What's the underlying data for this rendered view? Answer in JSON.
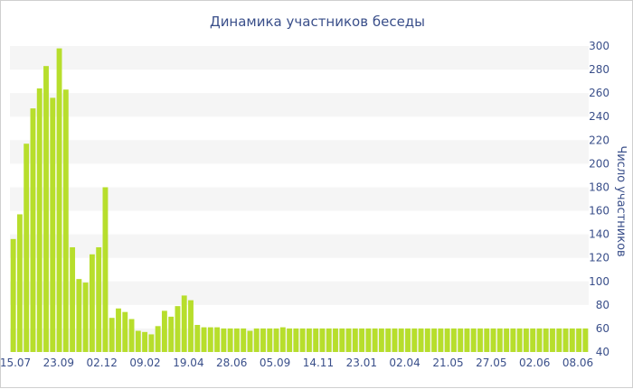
{
  "chart_data": {
    "type": "bar",
    "title": "Динамика участников беседы",
    "xlabel": "",
    "ylabel": "Число участников",
    "ylim": [
      40,
      300
    ],
    "yticks": [
      40,
      60,
      80,
      100,
      120,
      140,
      160,
      180,
      200,
      220,
      240,
      260,
      280,
      300
    ],
    "y_axis_side": "right",
    "grid": "alternating horizontal bands",
    "legend": "none",
    "bar_color": "#b7de2c",
    "band_color": "#f5f5f5",
    "text_color": "#3a4f8a",
    "x_tick_labels": [
      "15.07",
      "23.09",
      "02.12",
      "09.02",
      "19.04",
      "28.06",
      "05.09",
      "14.11",
      "23.01",
      "02.04",
      "21.05",
      "27.05",
      "02.06",
      "08.06"
    ],
    "values": [
      136,
      157,
      217,
      247,
      264,
      283,
      256,
      298,
      263,
      129,
      102,
      99,
      123,
      129,
      180,
      69,
      77,
      74,
      68,
      58,
      57,
      55,
      62,
      75,
      70,
      79,
      88,
      84,
      63,
      61,
      61,
      61,
      60,
      60,
      60,
      60,
      58,
      60,
      60,
      60,
      60,
      61,
      60,
      60,
      60,
      60,
      60,
      60,
      60,
      60,
      60,
      60,
      60,
      60,
      60,
      60,
      60,
      60,
      60,
      60,
      60,
      60,
      60,
      60,
      60,
      60,
      60,
      60,
      60,
      60,
      60,
      60,
      60,
      60,
      60,
      60,
      60,
      60,
      60,
      60,
      60,
      60,
      60,
      60,
      60,
      60,
      60,
      60
    ]
  }
}
